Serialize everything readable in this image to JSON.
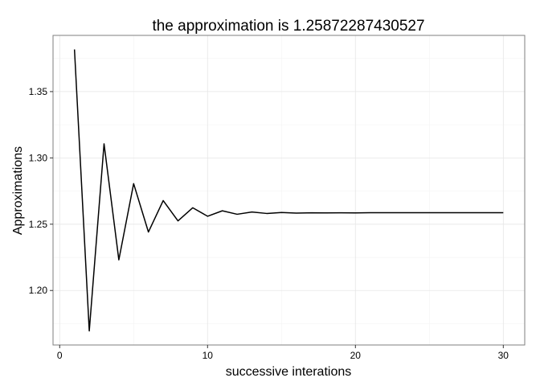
{
  "chart_data": {
    "type": "line",
    "title": "the approximation is 1.25872287430527",
    "xlabel": "successive interations",
    "ylabel": "Approximations",
    "x": [
      1,
      2,
      3,
      4,
      5,
      6,
      7,
      8,
      9,
      10,
      11,
      12,
      13,
      14,
      15,
      16,
      17,
      18,
      19,
      20,
      21,
      22,
      23,
      24,
      25,
      26,
      27,
      28,
      29,
      30
    ],
    "series": [
      {
        "values": [
          1.3818,
          1.1695,
          1.3106,
          1.2231,
          1.2806,
          1.2441,
          1.2678,
          1.2525,
          1.2624,
          1.256,
          1.2601,
          1.2575,
          1.2592,
          1.2581,
          1.2588,
          1.2584,
          1.2586,
          1.2585,
          1.2586,
          1.2585,
          1.2587,
          1.2587,
          1.2587,
          1.2587,
          1.2587,
          1.2587,
          1.2587,
          1.2587,
          1.2587,
          1.2587
        ],
        "color": "#000000"
      }
    ],
    "xlim": [
      -0.45,
      31.45
    ],
    "ylim": [
      1.1589,
      1.3924
    ],
    "x_ticks": [
      0,
      10,
      20,
      30
    ],
    "y_ticks": [
      1.2,
      1.25,
      1.3,
      1.35
    ],
    "x_tick_labels": [
      "0",
      "10",
      "20",
      "30"
    ],
    "y_tick_labels": [
      "1.20",
      "1.25",
      "1.30",
      "1.35"
    ],
    "grid": true,
    "legend": "none"
  }
}
